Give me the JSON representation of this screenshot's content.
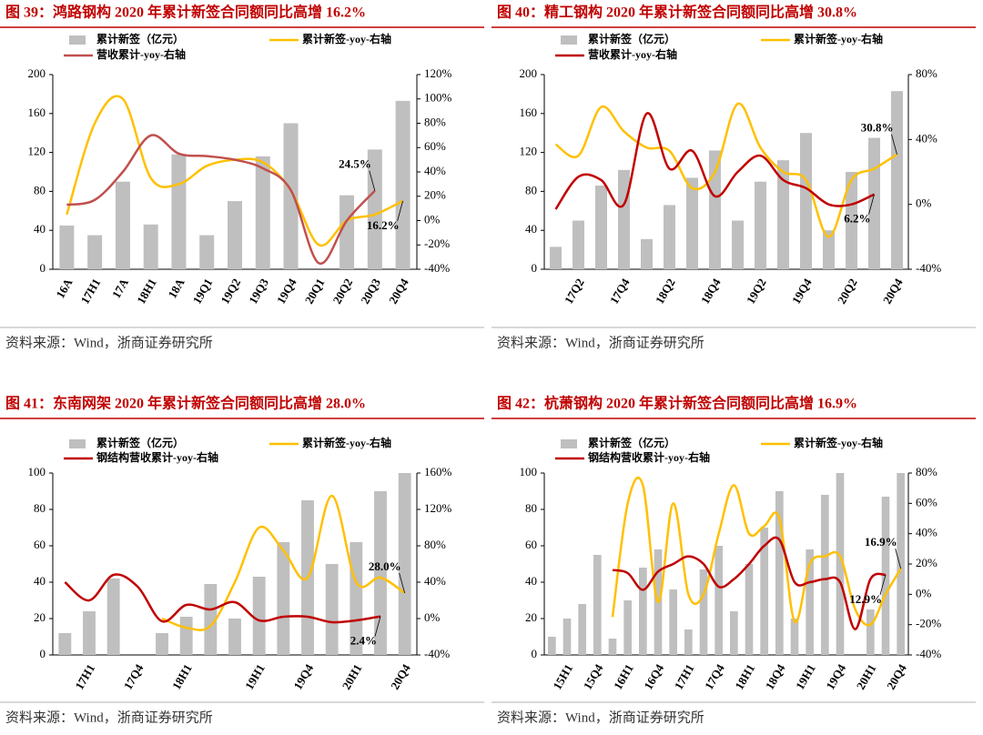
{
  "chart_data": [
    {
      "type": "bar",
      "title": "图 39：鸿路钢构 2020 年累计新签合同额同比高增 16.2%",
      "source": "资料来源：Wind，浙商证券研究所",
      "categories": [
        "16A",
        "17H1",
        "17A",
        "18H1",
        "18A",
        "19Q1",
        "19Q2",
        "19Q3",
        "19Q4",
        "20Q1",
        "20Q2",
        "20Q3",
        "20Q4"
      ],
      "series": [
        {
          "name": "累计新签（亿元）",
          "color": "#bfbfbf",
          "values": [
            45,
            35,
            90,
            46,
            118,
            35,
            70,
            116,
            150,
            null,
            76,
            123,
            173
          ]
        },
        {
          "name": "累计新签-yoy-右轴",
          "color": "#ffc000",
          "type": "line",
          "axis": "y2",
          "values": [
            5,
            80,
            100,
            35,
            30,
            45,
            50,
            48,
            25,
            -20,
            0,
            5,
            16.2
          ]
        },
        {
          "name": "营收累计-yoy-右轴",
          "color": "#c0504d",
          "type": "line",
          "axis": "y2",
          "values": [
            13,
            17,
            40,
            70,
            55,
            53,
            50,
            43,
            25,
            -35,
            0,
            24.5,
            null
          ]
        }
      ],
      "annotations": [
        "16.2%",
        "24.5%"
      ],
      "ylim": [
        0,
        200
      ],
      "yticks": [
        0,
        40,
        80,
        120,
        160,
        200
      ],
      "y2lim": [
        -40,
        120
      ],
      "y2ticks": [
        {
          "value": -40,
          "label": "-40%"
        },
        {
          "value": -20,
          "label": "-20%"
        },
        {
          "value": 0,
          "label": "0%"
        },
        {
          "value": 20,
          "label": "20%"
        },
        {
          "value": 40,
          "label": "40%"
        },
        {
          "value": 60,
          "label": "60%"
        },
        {
          "value": 80,
          "label": "80%"
        },
        {
          "value": 100,
          "label": "100%"
        },
        {
          "value": 120,
          "label": "120%"
        }
      ]
    },
    {
      "type": "bar",
      "title": "图 40：精工钢构 2020 年累计新签合同额同比高增 30.8%",
      "source": "资料来源：Wind，浙商证券研究所",
      "categories": [
        null,
        "17Q2",
        null,
        "17Q4",
        null,
        "18Q2",
        null,
        "18Q4",
        null,
        "19Q2",
        null,
        "19Q4",
        null,
        "20Q2",
        null,
        "20Q4"
      ],
      "series": [
        {
          "name": "累计新签（亿元）",
          "color": "#bfbfbf",
          "values": [
            23,
            50,
            86,
            102,
            31,
            66,
            94,
            122,
            50,
            90,
            112,
            140,
            40,
            100,
            135,
            183
          ]
        },
        {
          "name": "累计新签-yoy-右轴",
          "color": "#ffc000",
          "type": "line",
          "axis": "y2",
          "values": [
            37,
            30,
            60,
            45,
            35,
            33,
            10,
            20,
            62,
            35,
            20,
            15,
            -20,
            15,
            22,
            30.8
          ]
        },
        {
          "name": "营收累计-yoy-右轴",
          "color": "#c00000",
          "type": "line",
          "axis": "y2",
          "values": [
            -3,
            17,
            15,
            0,
            56,
            22,
            33,
            5,
            20,
            30,
            15,
            10,
            0,
            0,
            6.2,
            null
          ]
        }
      ],
      "annotations": [
        "30.8%",
        "6.2%"
      ],
      "ylim": [
        0,
        200
      ],
      "yticks": [
        0,
        40,
        80,
        120,
        160,
        200
      ],
      "y2lim": [
        -40,
        80
      ],
      "y2ticks": [
        {
          "value": -40,
          "label": "-40%"
        },
        {
          "value": 0,
          "label": "0%"
        },
        {
          "value": 40,
          "label": "40%"
        },
        {
          "value": 80,
          "label": "80%"
        }
      ]
    },
    {
      "type": "bar",
      "title": "图 41：东南网架 2020 年累计新签合同额同比高增 28.0%",
      "source": "资料来源：Wind，浙商证券研究所",
      "categories": [
        null,
        "17H1",
        null,
        "17Q4",
        null,
        "18H1",
        null,
        null,
        "19H1",
        null,
        "19Q4",
        null,
        "20H1",
        null,
        "20Q4"
      ],
      "series": [
        {
          "name": "累计新签（亿元）",
          "color": "#bfbfbf",
          "values": [
            12,
            24,
            42,
            null,
            12,
            21,
            39,
            20,
            43,
            62,
            85,
            50,
            62,
            90,
            100
          ]
        },
        {
          "name": "累计新签-yoy-右轴",
          "color": "#ffc000",
          "type": "line",
          "axis": "y2",
          "values": [
            null,
            null,
            null,
            null,
            0,
            -10,
            -8,
            40,
            100,
            75,
            45,
            135,
            40,
            45,
            28.0
          ]
        },
        {
          "name": "钢结构营收累计-yoy-右轴",
          "color": "#c00000",
          "type": "line",
          "axis": "y2",
          "values": [
            40,
            20,
            48,
            35,
            -3,
            15,
            10,
            18,
            -2,
            2,
            2,
            -4,
            -2,
            2.4,
            null
          ]
        }
      ],
      "annotations": [
        "28.0%",
        "2.4%"
      ],
      "ylim": [
        0,
        100
      ],
      "yticks": [
        0,
        20,
        40,
        60,
        80,
        100
      ],
      "y2lim": [
        -40,
        160
      ],
      "y2ticks": [
        {
          "value": -40,
          "label": "-40%"
        },
        {
          "value": 0,
          "label": "0%"
        },
        {
          "value": 40,
          "label": "40%"
        },
        {
          "value": 80,
          "label": "80%"
        },
        {
          "value": 120,
          "label": "120%"
        },
        {
          "value": 160,
          "label": "160%"
        }
      ]
    },
    {
      "type": "bar",
      "title": "图 42：杭萧钢构 2020 年累计新签合同额同比高增 16.9%",
      "source": "资料来源：Wind，浙商证券研究所",
      "categories": [
        null,
        "15H1",
        null,
        "15Q4",
        null,
        "16H1",
        null,
        "16Q4",
        null,
        "17H1",
        null,
        "17Q4",
        null,
        "18H1",
        null,
        "18Q4",
        null,
        "19H1",
        null,
        "19Q4",
        null,
        "20H1",
        null,
        "20Q4"
      ],
      "series": [
        {
          "name": "累计新签（亿元）",
          "color": "#bfbfbf",
          "values": [
            10,
            20,
            28,
            55,
            9,
            30,
            48,
            58,
            36,
            14,
            47,
            60,
            24,
            50,
            70,
            90,
            20,
            58,
            88,
            100,
            null,
            25,
            87,
            100
          ]
        },
        {
          "name": "累计新签-yoy-右轴",
          "color": "#ffc000",
          "type": "line",
          "axis": "y2",
          "values": [
            null,
            null,
            null,
            null,
            -15,
            60,
            72,
            -5,
            60,
            0,
            0,
            40,
            72,
            40,
            45,
            50,
            -18,
            20,
            25,
            25,
            -10,
            -20,
            0,
            16.9
          ]
        },
        {
          "name": "钢结构营收累计-yoy-右轴",
          "color": "#c00000",
          "type": "line",
          "axis": "y2",
          "values": [
            null,
            null,
            null,
            null,
            16,
            14,
            3,
            15,
            20,
            25,
            20,
            5,
            10,
            20,
            32,
            36,
            8,
            8,
            10,
            8,
            -23,
            10,
            12.9,
            null
          ]
        }
      ],
      "annotations": [
        "16.9%",
        "12.9%"
      ],
      "ylim": [
        0,
        100
      ],
      "yticks": [
        0,
        20,
        40,
        60,
        80,
        100
      ],
      "y2lim": [
        -40,
        80
      ],
      "y2ticks": [
        {
          "value": -40,
          "label": "-40%"
        },
        {
          "value": -20,
          "label": "-20%"
        },
        {
          "value": 0,
          "label": "0%"
        },
        {
          "value": 20,
          "label": "20%"
        },
        {
          "value": 40,
          "label": "40%"
        },
        {
          "value": 60,
          "label": "60%"
        },
        {
          "value": 80,
          "label": "80%"
        }
      ]
    }
  ]
}
